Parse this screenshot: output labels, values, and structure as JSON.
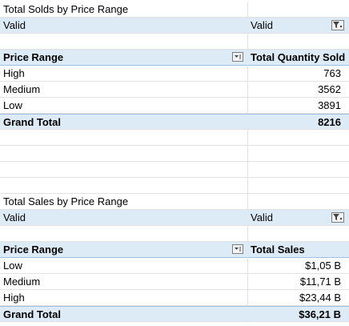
{
  "sold": {
    "title": "Total Solds by Price Range",
    "filter_label": "Valid",
    "filter_value": "Valid",
    "col1_header": "Price Range",
    "col2_header": "Total Quantity Sold",
    "rows": [
      {
        "label": "High",
        "value": "763"
      },
      {
        "label": "Medium",
        "value": "3562"
      },
      {
        "label": "Low",
        "value": "3891"
      }
    ],
    "total_label": "Grand Total",
    "total_value": "8216"
  },
  "sales": {
    "title": "Total Sales by Price Range",
    "filter_label": "Valid",
    "filter_value": "Valid",
    "col1_header": "Price Range",
    "col2_header": "Total Sales",
    "rows": [
      {
        "label": "Low",
        "value": "$1,05 B"
      },
      {
        "label": "Medium",
        "value": "$11,71 B"
      },
      {
        "label": "High",
        "value": "$23,44 B"
      }
    ],
    "total_label": "Grand Total",
    "total_value": "$36,21 B"
  },
  "colors": {
    "header_fill": "#ddebf7",
    "header_border": "#9bc2e6",
    "gridline": "#e1e1e1"
  },
  "icons": {
    "filter": "filter-funnel-icon",
    "sort": "sort-dropdown-icon"
  }
}
